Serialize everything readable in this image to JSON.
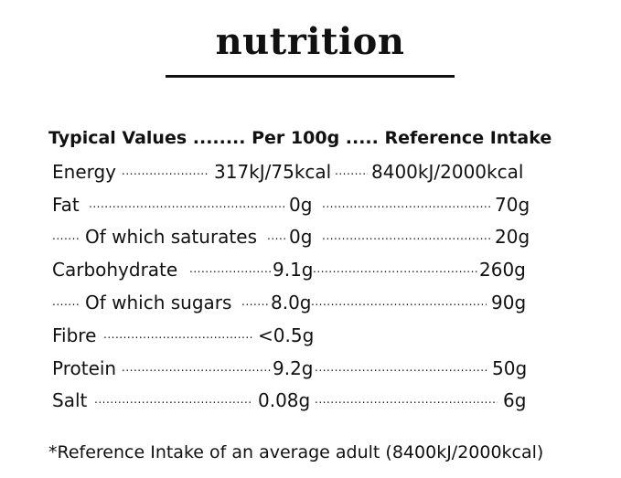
{
  "title": "nutrition",
  "header": "Typical Values ........ Per 100g ..... Reference Intake",
  "rows": [
    {
      "label": "Energy",
      "per100g": "317kJ/75kcal",
      "ri": "8400kJ/2000kcal"
    },
    {
      "label": "Fat",
      "per100g": "0g",
      "ri": "70g"
    },
    {
      "label": "Of which saturates",
      "per100g": "0g",
      "ri": "20g"
    },
    {
      "label": "Carbohydrate",
      "per100g": "9.1g",
      "ri": "260g"
    },
    {
      "label": "Of which sugars",
      "per100g": "8.0g",
      "ri": "90g"
    },
    {
      "label": "Fibre",
      "per100g": "<0.5g",
      "ri": ""
    },
    {
      "label": "Protein",
      "per100g": "9.2g",
      "ri": "50g"
    },
    {
      "label": "Salt",
      "per100g": "0.08g",
      "ri": "6g"
    }
  ],
  "footnote": "*Reference Intake of an average adult (8400kJ/2000kcal)"
}
